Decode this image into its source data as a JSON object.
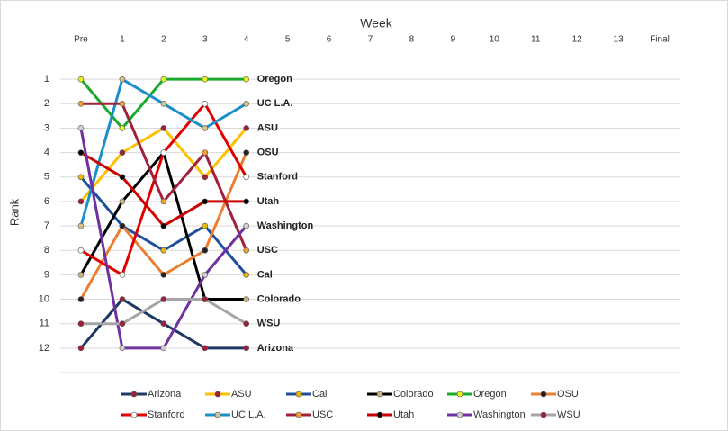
{
  "chart_data": {
    "type": "line",
    "x_title": "Week",
    "y_title": "Rank",
    "categories": [
      "Pre",
      "1",
      "2",
      "3",
      "4",
      "5",
      "6",
      "7",
      "8",
      "9",
      "10",
      "11",
      "12",
      "13",
      "Final"
    ],
    "ylim": [
      0,
      13
    ],
    "y_reversed": true,
    "yticks": [
      1,
      2,
      3,
      4,
      5,
      6,
      7,
      8,
      9,
      10,
      11,
      12
    ],
    "grid": true,
    "legend": "bottom",
    "series": [
      {
        "name": "Arizona",
        "color": "#1f3864",
        "marker_color": "#a0203c",
        "values": [
          12,
          10,
          11,
          12,
          12,
          null,
          null,
          null,
          null,
          null,
          null,
          null,
          null,
          null,
          null
        ]
      },
      {
        "name": "ASU",
        "color": "#ffc000",
        "marker_color": "#a0203c",
        "values": [
          6,
          4,
          3,
          5,
          3,
          null,
          null,
          null,
          null,
          null,
          null,
          null,
          null,
          null,
          null
        ]
      },
      {
        "name": "Cal",
        "color": "#1f4e9c",
        "marker_color": "#e6b800",
        "values": [
          5,
          7,
          8,
          7,
          9,
          null,
          null,
          null,
          null,
          null,
          null,
          null,
          null,
          null,
          null
        ]
      },
      {
        "name": "Colorado",
        "color": "#000000",
        "marker_color": "#c9b37e",
        "values": [
          9,
          6,
          4,
          10,
          10,
          null,
          null,
          null,
          null,
          null,
          null,
          null,
          null,
          null,
          null
        ]
      },
      {
        "name": "Oregon",
        "color": "#1aab2e",
        "marker_color": "#e8f020",
        "values": [
          1,
          3,
          1,
          1,
          1,
          null,
          null,
          null,
          null,
          null,
          null,
          null,
          null,
          null,
          null
        ]
      },
      {
        "name": "OSU",
        "color": "#ed7d31",
        "marker_color": "#222222",
        "values": [
          10,
          7,
          9,
          8,
          4,
          null,
          null,
          null,
          null,
          null,
          null,
          null,
          null,
          null,
          null
        ]
      },
      {
        "name": "Stanford",
        "color": "#e00000",
        "marker_color": "#ffffff",
        "values": [
          8,
          9,
          4,
          2,
          5,
          null,
          null,
          null,
          null,
          null,
          null,
          null,
          null,
          null,
          null
        ]
      },
      {
        "name": "UC L.A.",
        "color": "#1a8fc9",
        "marker_color": "#d9c08a",
        "values": [
          7,
          1,
          2,
          3,
          2,
          null,
          null,
          null,
          null,
          null,
          null,
          null,
          null,
          null,
          null
        ]
      },
      {
        "name": "USC",
        "color": "#a0203c",
        "marker_color": "#f0a030",
        "values": [
          2,
          2,
          6,
          4,
          8,
          null,
          null,
          null,
          null,
          null,
          null,
          null,
          null,
          null,
          null
        ]
      },
      {
        "name": "Utah",
        "color": "#cc0000",
        "marker_color": "#000000",
        "values": [
          4,
          5,
          7,
          6,
          6,
          null,
          null,
          null,
          null,
          null,
          null,
          null,
          null,
          null,
          null
        ]
      },
      {
        "name": "Washington",
        "color": "#7030a0",
        "marker_color": "#d0d0d0",
        "values": [
          3,
          12,
          12,
          9,
          7,
          null,
          null,
          null,
          null,
          null,
          null,
          null,
          null,
          null,
          null
        ]
      },
      {
        "name": "WSU",
        "color": "#a6a6a6",
        "marker_color": "#a0203c",
        "values": [
          11,
          11,
          10,
          10,
          11,
          null,
          null,
          null,
          null,
          null,
          null,
          null,
          null,
          null,
          null
        ]
      }
    ]
  }
}
